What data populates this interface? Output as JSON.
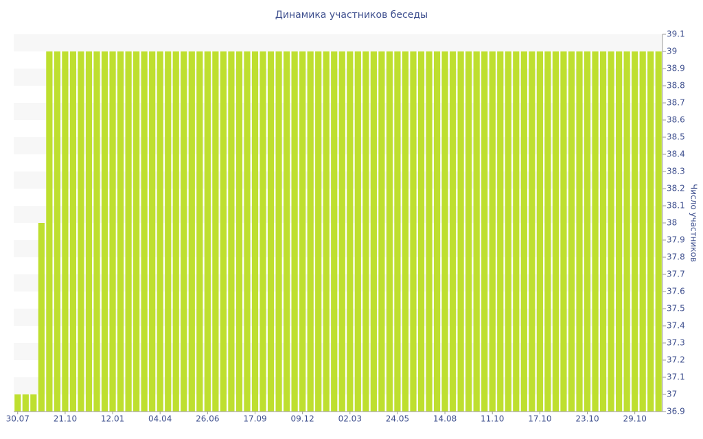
{
  "chart_data": {
    "type": "bar",
    "title": "Динамика участников беседы",
    "y_axis_label": "Число участников",
    "categories": [
      "30.07",
      null,
      null,
      null,
      null,
      null,
      "21.10",
      null,
      null,
      null,
      null,
      null,
      "12.01",
      null,
      null,
      null,
      null,
      null,
      "04.04",
      null,
      null,
      null,
      null,
      null,
      "26.06",
      null,
      null,
      null,
      null,
      null,
      "17.09",
      null,
      null,
      null,
      null,
      null,
      "09.12",
      null,
      null,
      null,
      null,
      null,
      "02.03",
      null,
      null,
      null,
      null,
      null,
      "24.05",
      null,
      null,
      null,
      null,
      null,
      "14.08",
      null,
      null,
      null,
      null,
      null,
      "11.10",
      null,
      null,
      null,
      null,
      null,
      "17.10",
      null,
      null,
      null,
      null,
      null,
      "23.10",
      null,
      null,
      null,
      null,
      null,
      "29.10",
      null,
      null,
      null
    ],
    "values": [
      37,
      37,
      37,
      38,
      39,
      39,
      39,
      39,
      39,
      39,
      39,
      39,
      39,
      39,
      39,
      39,
      39,
      39,
      39,
      39,
      39,
      39,
      39,
      39,
      39,
      39,
      39,
      39,
      39,
      39,
      39,
      39,
      39,
      39,
      39,
      39,
      39,
      39,
      39,
      39,
      39,
      39,
      39,
      39,
      39,
      39,
      39,
      39,
      39,
      39,
      39,
      39,
      39,
      39,
      39,
      39,
      39,
      39,
      39,
      39,
      39,
      39,
      39,
      39,
      39,
      39,
      39,
      39,
      39,
      39,
      39,
      39,
      39,
      39,
      39,
      39,
      39,
      39,
      39,
      39,
      39,
      39
    ],
    "color": "#bedf2f",
    "ylim": [
      36.9,
      39.1
    ],
    "yticks": [
      36.9,
      37,
      37.1,
      37.2,
      37.3,
      37.4,
      37.5,
      37.6,
      37.7,
      37.8,
      37.9,
      38,
      38.1,
      38.2,
      38.3,
      38.4,
      38.5,
      38.6,
      38.7,
      38.8,
      38.9,
      39,
      39.1
    ],
    "y_axis_side": "right",
    "grid": true
  }
}
